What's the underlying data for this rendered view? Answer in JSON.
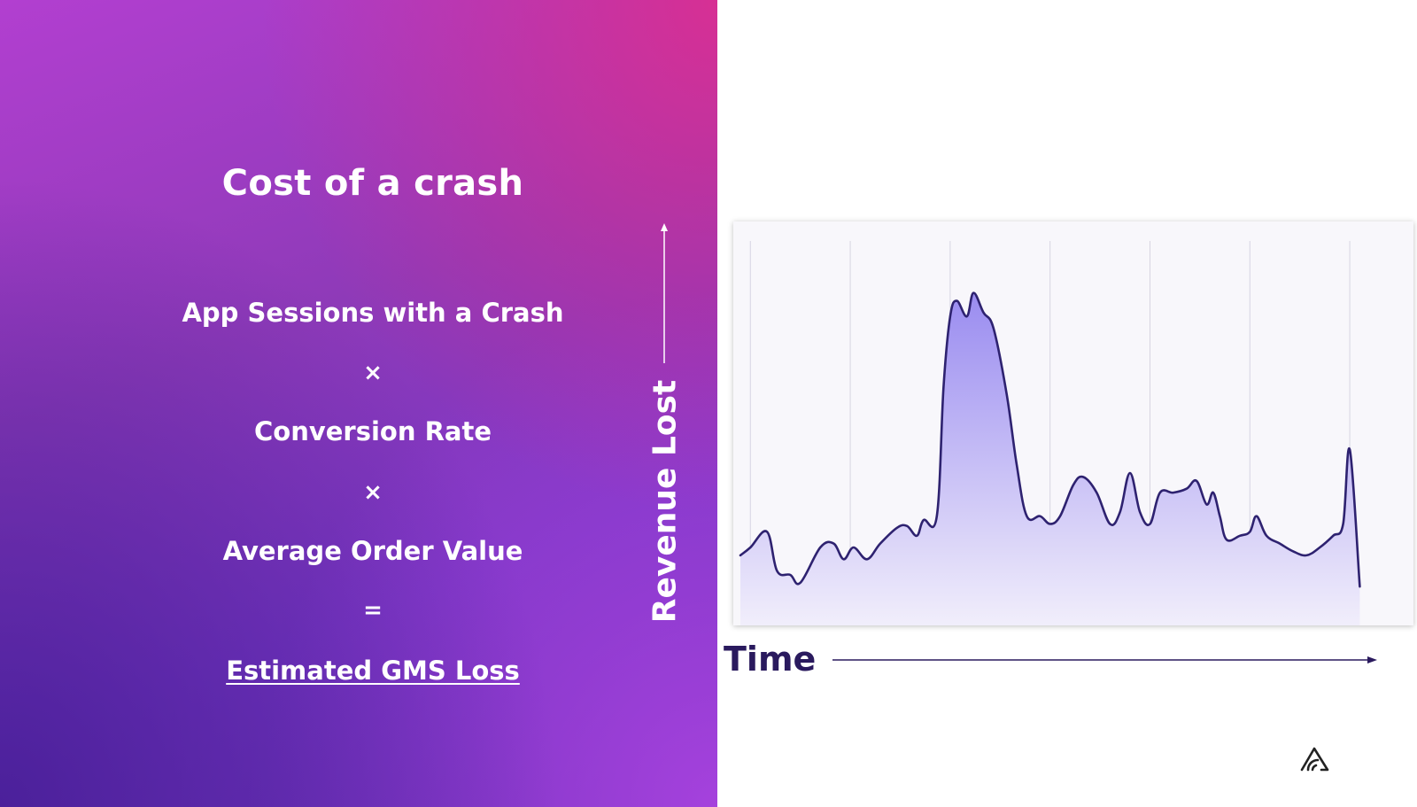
{
  "slide": {
    "title": "Cost of a crash",
    "formula": {
      "term1": "App Sessions with a Crash",
      "op1": "×",
      "term2": "Conversion Rate",
      "op2": "×",
      "term3": "Average Order Value",
      "op3": "=",
      "result": "Estimated GMS Loss"
    }
  },
  "colors": {
    "line": "#2e2270",
    "fill_top": "#9a8cf0",
    "fill_bottom": "#f1eefb",
    "x_label": "#2a1a5e"
  },
  "chart_data": {
    "type": "area",
    "title": "",
    "xlabel": "Time",
    "ylabel": "Revenue Lost",
    "xlim": [
      0,
      100
    ],
    "ylim": [
      0,
      100
    ],
    "grid": {
      "vertical": true,
      "horizontal": false
    },
    "legend": "none",
    "series": [
      {
        "values": [
          [
            0,
            17
          ],
          [
            1.5,
            19
          ],
          [
            4,
            23
          ],
          [
            5.5,
            13
          ],
          [
            7.5,
            12
          ],
          [
            9,
            10
          ],
          [
            12,
            19
          ],
          [
            14,
            20
          ],
          [
            15.5,
            16
          ],
          [
            17,
            19
          ],
          [
            19,
            16
          ],
          [
            21,
            20
          ],
          [
            23.5,
            24
          ],
          [
            25,
            24.5
          ],
          [
            26.5,
            22
          ],
          [
            27.5,
            26
          ],
          [
            29.5,
            27
          ],
          [
            30.5,
            60
          ],
          [
            31.5,
            78
          ],
          [
            32.5,
            82
          ],
          [
            34,
            78
          ],
          [
            35,
            84
          ],
          [
            36.5,
            79
          ],
          [
            38,
            75
          ],
          [
            40,
            58
          ],
          [
            41.5,
            40
          ],
          [
            43,
            27
          ],
          [
            45,
            27
          ],
          [
            46.5,
            25
          ],
          [
            48,
            27
          ],
          [
            50,
            35
          ],
          [
            51.5,
            37
          ],
          [
            53.5,
            33
          ],
          [
            55.5,
            25
          ],
          [
            57,
            28
          ],
          [
            58.5,
            38
          ],
          [
            60,
            28
          ],
          [
            61.5,
            25
          ],
          [
            63,
            33
          ],
          [
            65,
            33
          ],
          [
            67,
            34
          ],
          [
            68.5,
            36
          ],
          [
            70,
            30
          ],
          [
            71,
            33
          ],
          [
            72,
            27
          ],
          [
            73,
            21
          ],
          [
            75,
            22
          ],
          [
            76.5,
            23
          ],
          [
            77.5,
            27
          ],
          [
            79,
            22
          ],
          [
            81,
            20
          ],
          [
            83,
            18
          ],
          [
            85,
            17
          ],
          [
            87,
            19
          ],
          [
            89,
            22
          ],
          [
            90.5,
            25
          ],
          [
            91.5,
            44
          ],
          [
            93,
            9
          ]
        ]
      }
    ]
  }
}
